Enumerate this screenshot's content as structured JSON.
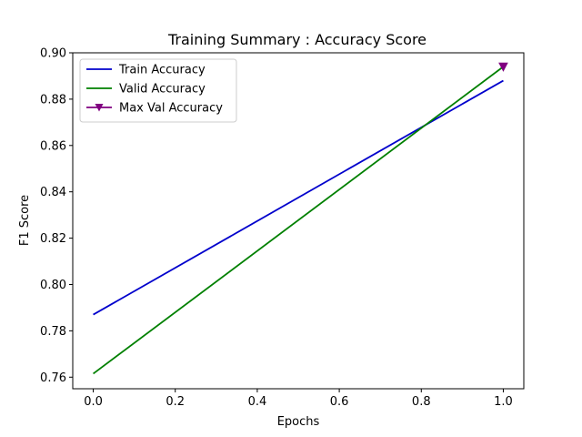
{
  "chart_data": {
    "type": "line",
    "title": "Training Summary : Accuracy Score",
    "xlabel": "Epochs",
    "ylabel": "F1 Score",
    "xlim": [
      -0.05,
      1.05
    ],
    "ylim": [
      0.755,
      0.9
    ],
    "x_ticks": [
      0.0,
      0.2,
      0.4,
      0.6,
      0.8,
      1.0
    ],
    "x_tick_labels": [
      "0.0",
      "0.2",
      "0.4",
      "0.6",
      "0.8",
      "1.0"
    ],
    "y_ticks": [
      0.76,
      0.78,
      0.8,
      0.82,
      0.84,
      0.86,
      0.88,
      0.9
    ],
    "y_tick_labels": [
      "0.76",
      "0.78",
      "0.80",
      "0.82",
      "0.84",
      "0.86",
      "0.88",
      "0.90"
    ],
    "grid": false,
    "legend_position": "top-left",
    "series": [
      {
        "name": "Train Accuracy",
        "color": "#0000cc",
        "marker": "none",
        "x": [
          0,
          1
        ],
        "y": [
          0.787,
          0.888
        ]
      },
      {
        "name": "Valid Accuracy",
        "color": "#008000",
        "marker": "none",
        "x": [
          0,
          1
        ],
        "y": [
          0.7615,
          0.894
        ]
      },
      {
        "name": "Max Val Accuracy",
        "color": "#800080",
        "marker": "triangle-down",
        "x": [
          1
        ],
        "y": [
          0.894
        ]
      }
    ]
  }
}
